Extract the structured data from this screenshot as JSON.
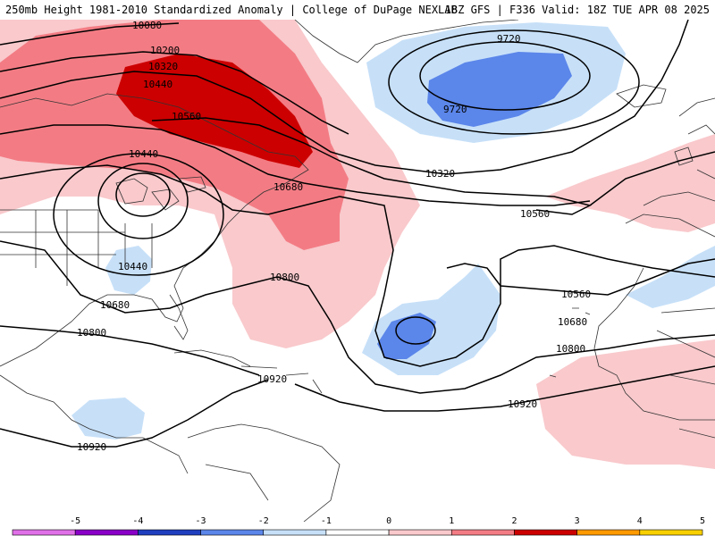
{
  "header": {
    "title_left": "250mb Height 1981-2010 Standardized Anomaly | College of DuPage NEXLAB",
    "title_right": "18Z GFS | F336 Valid: 18Z TUE APR 08 2025"
  },
  "colors": {
    "anom_pos_1": "#f9c9cc",
    "anom_pos_2": "#f37c84",
    "anom_pos_3": "#cc0000",
    "anom_neg_1": "#c7e0f8",
    "anom_neg_2": "#5b86ea",
    "land_outline": "#333333",
    "contour": "#000000"
  },
  "contour_labels": [
    {
      "id": "l10080",
      "text": "10080"
    },
    {
      "id": "l10200",
      "text": "10200"
    },
    {
      "id": "l10320a",
      "text": "10320"
    },
    {
      "id": "l10440a",
      "text": "10440"
    },
    {
      "id": "l10560a",
      "text": "10560"
    },
    {
      "id": "l10440b",
      "text": "10440"
    },
    {
      "id": "l10680a",
      "text": "10680"
    },
    {
      "id": "l10440c",
      "text": "10440"
    },
    {
      "id": "l10680b",
      "text": "10680"
    },
    {
      "id": "l10800a",
      "text": "10800"
    },
    {
      "id": "l10800b",
      "text": "10800"
    },
    {
      "id": "l10920a",
      "text": "10920"
    },
    {
      "id": "l10920b",
      "text": "10920"
    },
    {
      "id": "l9720a",
      "text": "9720"
    },
    {
      "id": "l9720b",
      "text": "9720"
    },
    {
      "id": "l10320b",
      "text": "10320"
    },
    {
      "id": "l10560b",
      "text": "10560"
    },
    {
      "id": "l10560c",
      "text": "10560"
    },
    {
      "id": "l10680c",
      "text": "10680"
    },
    {
      "id": "l10800c",
      "text": "10800"
    },
    {
      "id": "l10920c",
      "text": "10920"
    }
  ],
  "colorbar": {
    "ticks": [
      "-5",
      "-4",
      "-3",
      "-2",
      "-1",
      "0",
      "1",
      "2",
      "3",
      "4",
      "5"
    ],
    "segments": [
      "#e070e8",
      "#8a00c8",
      "#1f3fbf",
      "#5b86ea",
      "#c7e0f8",
      "#ffffff",
      "#f9c9cc",
      "#f37c84",
      "#cc0000",
      "#ff9a00",
      "#f8d000"
    ]
  }
}
